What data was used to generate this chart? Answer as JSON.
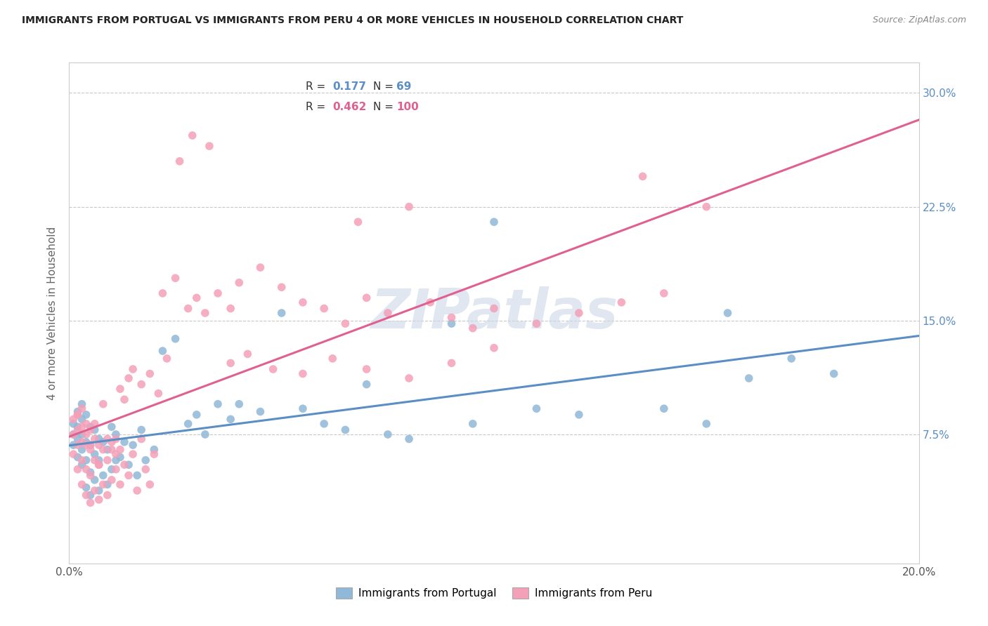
{
  "title": "IMMIGRANTS FROM PORTUGAL VS IMMIGRANTS FROM PERU 4 OR MORE VEHICLES IN HOUSEHOLD CORRELATION CHART",
  "source": "Source: ZipAtlas.com",
  "ylabel": "4 or more Vehicles in Household",
  "ytick_values": [
    0.075,
    0.15,
    0.225,
    0.3
  ],
  "xlim": [
    0.0,
    0.2
  ],
  "ylim": [
    -0.01,
    0.32
  ],
  "portugal_color": "#90b8d8",
  "peru_color": "#f4a0b8",
  "portugal_line_color": "#5b8ec4",
  "peru_line_color": "#e06090",
  "watermark_color": "#ccd8e8",
  "background_color": "#ffffff",
  "grid_color": "#c8c8c8",
  "portugal_x": [
    0.001,
    0.001,
    0.001,
    0.002,
    0.002,
    0.002,
    0.002,
    0.003,
    0.003,
    0.003,
    0.003,
    0.003,
    0.004,
    0.004,
    0.004,
    0.004,
    0.005,
    0.005,
    0.005,
    0.005,
    0.006,
    0.006,
    0.006,
    0.007,
    0.007,
    0.007,
    0.008,
    0.008,
    0.009,
    0.009,
    0.01,
    0.01,
    0.011,
    0.011,
    0.012,
    0.013,
    0.014,
    0.015,
    0.016,
    0.017,
    0.018,
    0.02,
    0.022,
    0.025,
    0.028,
    0.03,
    0.032,
    0.035,
    0.038,
    0.04,
    0.045,
    0.05,
    0.055,
    0.06,
    0.065,
    0.07,
    0.075,
    0.08,
    0.09,
    0.095,
    0.1,
    0.11,
    0.12,
    0.14,
    0.15,
    0.155,
    0.16,
    0.17,
    0.18
  ],
  "portugal_y": [
    0.068,
    0.075,
    0.082,
    0.06,
    0.072,
    0.08,
    0.09,
    0.055,
    0.065,
    0.075,
    0.085,
    0.095,
    0.04,
    0.058,
    0.07,
    0.088,
    0.035,
    0.05,
    0.068,
    0.08,
    0.045,
    0.062,
    0.078,
    0.038,
    0.058,
    0.072,
    0.048,
    0.07,
    0.042,
    0.065,
    0.052,
    0.08,
    0.058,
    0.075,
    0.06,
    0.07,
    0.055,
    0.068,
    0.048,
    0.078,
    0.058,
    0.065,
    0.13,
    0.138,
    0.082,
    0.088,
    0.075,
    0.095,
    0.085,
    0.095,
    0.09,
    0.155,
    0.092,
    0.082,
    0.078,
    0.108,
    0.075,
    0.072,
    0.148,
    0.082,
    0.215,
    0.092,
    0.088,
    0.092,
    0.082,
    0.155,
    0.112,
    0.125,
    0.115
  ],
  "peru_x": [
    0.001,
    0.001,
    0.001,
    0.002,
    0.002,
    0.002,
    0.002,
    0.003,
    0.003,
    0.003,
    0.003,
    0.004,
    0.004,
    0.004,
    0.004,
    0.005,
    0.005,
    0.005,
    0.005,
    0.006,
    0.006,
    0.006,
    0.007,
    0.007,
    0.007,
    0.008,
    0.008,
    0.009,
    0.009,
    0.01,
    0.01,
    0.011,
    0.011,
    0.012,
    0.012,
    0.013,
    0.014,
    0.015,
    0.016,
    0.017,
    0.018,
    0.019,
    0.02,
    0.022,
    0.025,
    0.028,
    0.03,
    0.032,
    0.035,
    0.038,
    0.04,
    0.045,
    0.05,
    0.055,
    0.06,
    0.065,
    0.068,
    0.07,
    0.075,
    0.08,
    0.085,
    0.09,
    0.095,
    0.1,
    0.11,
    0.12,
    0.13,
    0.135,
    0.14,
    0.15,
    0.002,
    0.003,
    0.004,
    0.005,
    0.006,
    0.007,
    0.008,
    0.009,
    0.01,
    0.011,
    0.012,
    0.013,
    0.014,
    0.015,
    0.017,
    0.019,
    0.021,
    0.023,
    0.026,
    0.029,
    0.033,
    0.038,
    0.042,
    0.048,
    0.055,
    0.062,
    0.07,
    0.08,
    0.09,
    0.1
  ],
  "peru_y": [
    0.062,
    0.075,
    0.085,
    0.052,
    0.068,
    0.078,
    0.088,
    0.042,
    0.058,
    0.07,
    0.08,
    0.035,
    0.052,
    0.068,
    0.082,
    0.03,
    0.048,
    0.065,
    0.078,
    0.038,
    0.058,
    0.072,
    0.032,
    0.055,
    0.068,
    0.042,
    0.065,
    0.035,
    0.058,
    0.045,
    0.07,
    0.052,
    0.072,
    0.042,
    0.065,
    0.055,
    0.048,
    0.062,
    0.038,
    0.072,
    0.052,
    0.042,
    0.062,
    0.168,
    0.178,
    0.158,
    0.165,
    0.155,
    0.168,
    0.158,
    0.175,
    0.185,
    0.172,
    0.162,
    0.158,
    0.148,
    0.215,
    0.165,
    0.155,
    0.225,
    0.162,
    0.152,
    0.145,
    0.158,
    0.148,
    0.155,
    0.162,
    0.245,
    0.168,
    0.225,
    0.088,
    0.092,
    0.075,
    0.068,
    0.082,
    0.055,
    0.095,
    0.072,
    0.065,
    0.062,
    0.105,
    0.098,
    0.112,
    0.118,
    0.108,
    0.115,
    0.102,
    0.125,
    0.255,
    0.272,
    0.265,
    0.122,
    0.128,
    0.118,
    0.115,
    0.125,
    0.118,
    0.112,
    0.122,
    0.132
  ]
}
